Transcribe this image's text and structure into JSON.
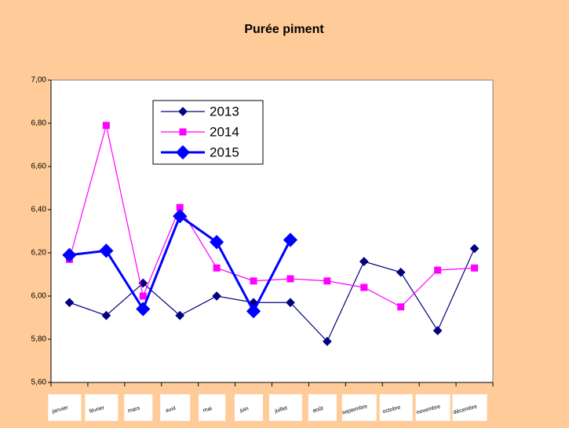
{
  "chart_data": {
    "type": "line",
    "title": "Purée piment",
    "categories": [
      "janvier",
      "février",
      "mars",
      "avril",
      "mai",
      "juin",
      "juillet",
      "août",
      "septembre",
      "octobre",
      "novembre",
      "décembre"
    ],
    "series": [
      {
        "name": "2013",
        "color": "#000080",
        "marker": "diamond",
        "values": [
          5.97,
          5.91,
          6.06,
          5.91,
          6.0,
          5.97,
          5.97,
          5.79,
          6.16,
          6.11,
          5.84,
          6.22
        ]
      },
      {
        "name": "2014",
        "color": "#ff00ff",
        "marker": "square",
        "values": [
          6.17,
          6.79,
          6.0,
          6.41,
          6.13,
          6.07,
          6.08,
          6.07,
          6.04,
          5.95,
          6.12,
          6.13
        ]
      },
      {
        "name": "2015",
        "color": "#0000ff",
        "marker": "diamond",
        "values": [
          6.19,
          6.21,
          5.94,
          6.37,
          6.25,
          5.93,
          6.26,
          null,
          null,
          null,
          null,
          null
        ]
      }
    ],
    "ylim": [
      5.6,
      7.0
    ],
    "yticks": [
      {
        "value": 5.6,
        "label": "5,60"
      },
      {
        "value": 5.8,
        "label": "5,80"
      },
      {
        "value": 6.0,
        "label": "6,00"
      },
      {
        "value": 6.2,
        "label": "6,20"
      },
      {
        "value": 6.4,
        "label": "6,40"
      },
      {
        "value": 6.6,
        "label": "6,60"
      },
      {
        "value": 6.8,
        "label": "6,80"
      },
      {
        "value": 7.0,
        "label": "7,00"
      }
    ],
    "grid": false,
    "legend": "upper left"
  }
}
